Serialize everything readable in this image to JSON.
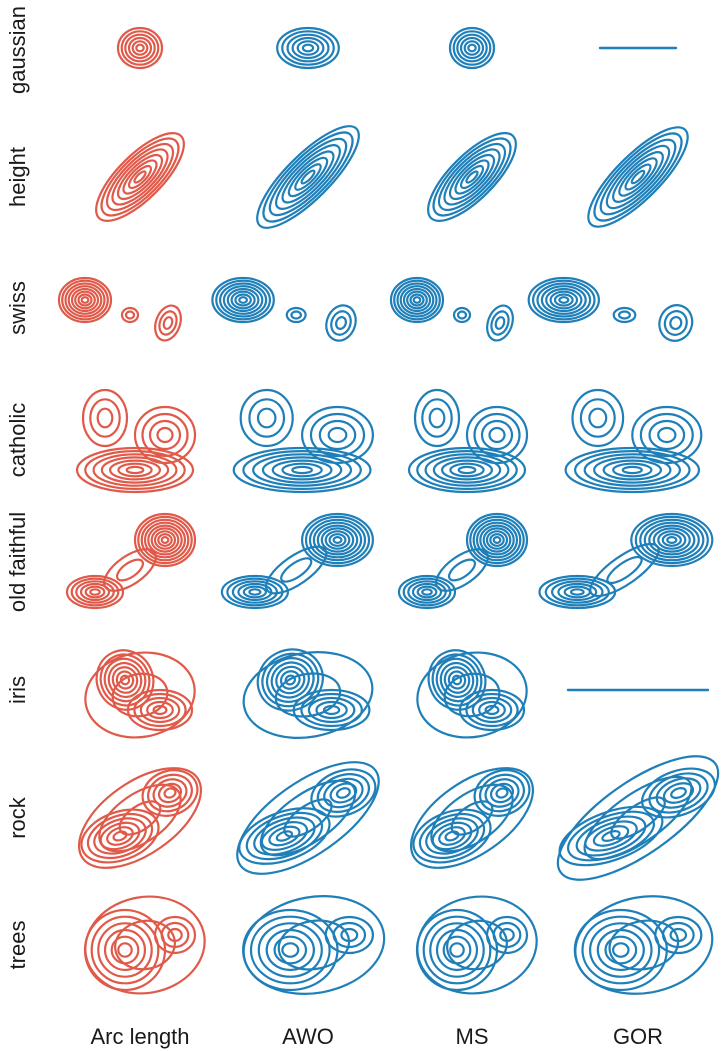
{
  "figure": {
    "rows": [
      "gaussian",
      "height",
      "swiss",
      "catholic",
      "old faithful",
      "iris",
      "rock",
      "trees"
    ],
    "columns": [
      "Arc length",
      "AWO",
      "MS",
      "GOR"
    ],
    "colors": {
      "arc_length": "#e05a4a",
      "others": "#1f7fb8"
    },
    "collapsed_panels": [
      {
        "row": "gaussian",
        "column": "GOR"
      },
      {
        "row": "iris",
        "column": "GOR"
      }
    ]
  }
}
